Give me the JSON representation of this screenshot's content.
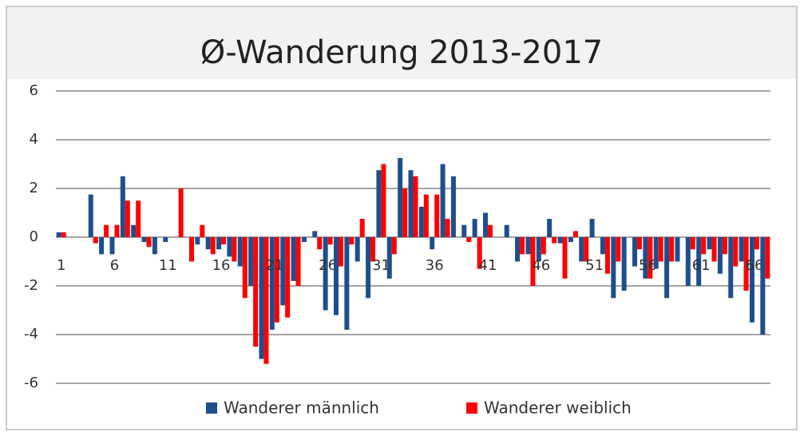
{
  "chart_data": {
    "type": "bar",
    "title": "Ø-Wanderung 2013-2017",
    "categories": [
      "1",
      null,
      null,
      null,
      null,
      "6",
      null,
      null,
      null,
      null,
      "11",
      null,
      null,
      null,
      null,
      "16",
      null,
      null,
      null,
      null,
      "21",
      null,
      null,
      null,
      null,
      "26",
      null,
      null,
      null,
      null,
      "31",
      null,
      null,
      null,
      null,
      "36",
      null,
      null,
      null,
      null,
      "41",
      null,
      null,
      null,
      null,
      "46",
      null,
      null,
      null,
      null,
      "51",
      null,
      null,
      null,
      null,
      "56",
      null,
      null,
      null,
      null,
      "61",
      null,
      null,
      null,
      null,
      "66",
      null
    ],
    "series": [
      {
        "name": "Wanderer männlich",
        "color": "#1f4e8c",
        "values": [
          0.2,
          0,
          0,
          1.75,
          -0.7,
          -0.7,
          2.5,
          0.5,
          -0.2,
          -0.7,
          -0.2,
          0,
          0,
          -0.3,
          -0.5,
          -0.5,
          -0.8,
          -1.2,
          -2.0,
          -5.0,
          -3.8,
          -2.8,
          -1.8,
          -0.2,
          0.25,
          -3.0,
          -3.2,
          -3.8,
          -1.0,
          -2.5,
          2.75,
          -1.7,
          3.25,
          2.75,
          1.25,
          -0.5,
          3.0,
          2.5,
          0.5,
          0.75,
          1.0,
          0,
          0.5,
          -1.0,
          -0.7,
          -1.0,
          0.75,
          -0.25,
          -0.2,
          -1.0,
          0.75,
          -0.7,
          -2.5,
          -2.2,
          -1.2,
          -1.7,
          -1.3,
          -2.5,
          -1.0,
          -2.0,
          -2.0,
          -0.5,
          -1.5,
          -2.5,
          -1.0,
          -3.5,
          -4.0
        ]
      },
      {
        "name": "Wanderer weiblich",
        "color": "#ff0000",
        "values": [
          0.2,
          0,
          0,
          -0.25,
          0.5,
          0.5,
          1.5,
          1.5,
          -0.4,
          0,
          0,
          2.0,
          -1.0,
          0.5,
          -0.7,
          -0.3,
          -1.0,
          -2.5,
          -4.5,
          -5.2,
          -3.5,
          -3.3,
          -2.0,
          0,
          -0.5,
          -0.3,
          -1.2,
          -0.3,
          0.75,
          -1.0,
          3.0,
          -0.7,
          2.0,
          2.5,
          1.75,
          1.75,
          0.75,
          0,
          -0.2,
          -1.3,
          0.5,
          0,
          0,
          -0.7,
          -2.0,
          -0.7,
          -0.25,
          -1.7,
          0.25,
          -1.0,
          0,
          -1.5,
          -1.0,
          0,
          -0.5,
          -1.7,
          -1.0,
          -1.0,
          0,
          -0.5,
          -0.7,
          -1.0,
          -0.7,
          -1.2,
          -2.2,
          -0.5,
          -1.7
        ]
      }
    ],
    "ylim": [
      -6,
      6
    ],
    "yticks": [
      -6,
      -4,
      -2,
      0,
      2,
      4,
      6
    ],
    "grid": true,
    "legend": "bottom"
  }
}
